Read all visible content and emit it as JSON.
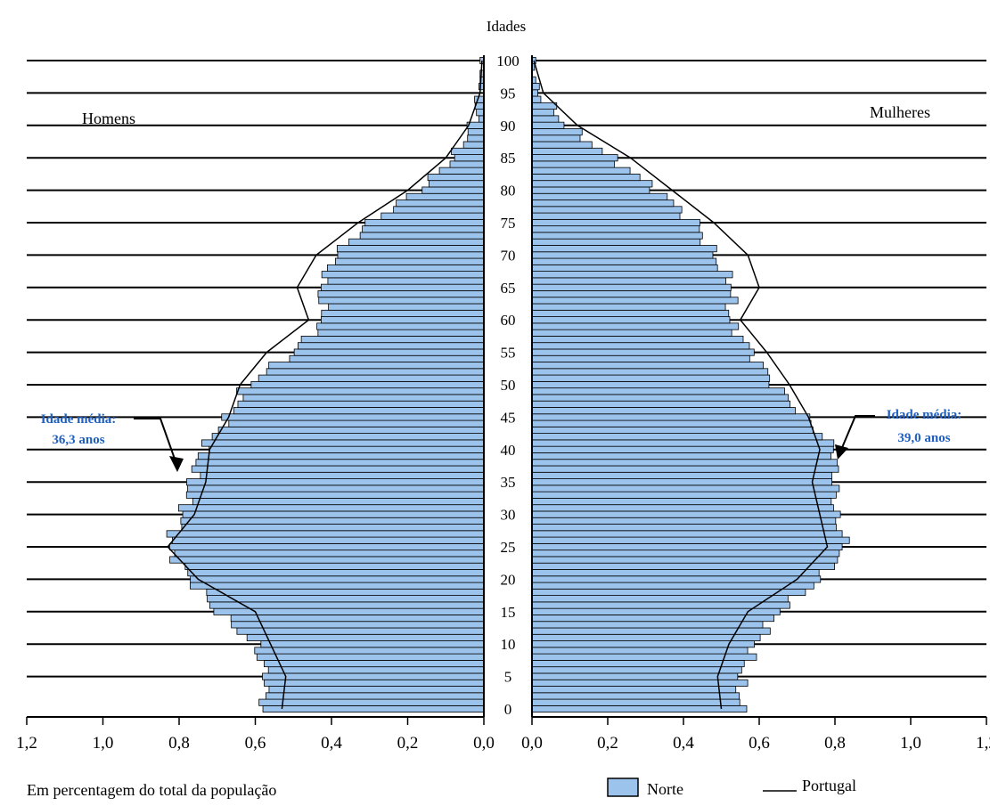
{
  "chart_data": {
    "type": "bar",
    "chart_kind": "population pyramid",
    "title": "",
    "axis_title_age": "Idades",
    "left_label": "Homens",
    "right_label": "Mulheres",
    "xlabel": "Em percentagem do total da população",
    "x_ticks_left": [
      "1,2",
      "1,0",
      "0,8",
      "0,6",
      "0,4",
      "0,2",
      "0,0"
    ],
    "x_ticks_right": [
      "0,0",
      "0,2",
      "0,4",
      "0,6",
      "0,8",
      "1,0",
      "1,2"
    ],
    "xlim": [
      0,
      1.2
    ],
    "age_ticks": [
      "0",
      "5",
      "10",
      "15",
      "20",
      "25",
      "30",
      "35",
      "40",
      "45",
      "50",
      "55",
      "60",
      "65",
      "70",
      "75",
      "80",
      "85",
      "90",
      "95",
      "100"
    ],
    "age_range": [
      0,
      100
    ],
    "legend": [
      {
        "name": "Norte",
        "kind": "bar",
        "color": "#9cc3ec"
      },
      {
        "name": "Portugal",
        "kind": "line",
        "color": "#000000"
      }
    ],
    "annotations": [
      {
        "side": "left",
        "line1": "Idade média:",
        "line2": "36,3 anos",
        "age": 36.3
      },
      {
        "side": "right",
        "line1": "Idade média:",
        "line2": "39,0 anos",
        "age": 39.0
      }
    ],
    "grid": "horizontal lines every 5 years",
    "colors": {
      "bar_fill": "#9cc3ec",
      "bar_stroke": "#000000",
      "portugal_line": "#000000",
      "annotation_text": "#1f5fbf"
    },
    "series": [
      {
        "name": "Norte",
        "side": "Homens",
        "ages": [
          0,
          5,
          10,
          15,
          20,
          25,
          30,
          35,
          40,
          45,
          50,
          55,
          60,
          65,
          70,
          75,
          80,
          85,
          90,
          95,
          100
        ],
        "values": [
          0.58,
          0.57,
          0.6,
          0.7,
          0.77,
          0.83,
          0.79,
          0.77,
          0.74,
          0.67,
          0.62,
          0.5,
          0.42,
          0.43,
          0.39,
          0.3,
          0.17,
          0.08,
          0.03,
          0.01,
          0.005
        ]
      },
      {
        "name": "Norte",
        "side": "Mulheres",
        "ages": [
          0,
          5,
          10,
          15,
          20,
          25,
          30,
          35,
          40,
          45,
          50,
          55,
          60,
          65,
          70,
          75,
          80,
          85,
          90,
          95,
          100
        ],
        "values": [
          0.55,
          0.55,
          0.59,
          0.65,
          0.76,
          0.83,
          0.8,
          0.8,
          0.8,
          0.72,
          0.64,
          0.58,
          0.52,
          0.53,
          0.48,
          0.43,
          0.33,
          0.21,
          0.09,
          0.02,
          0.005
        ]
      },
      {
        "name": "Portugal",
        "side": "Homens",
        "ages": [
          0,
          5,
          10,
          15,
          20,
          25,
          30,
          35,
          40,
          45,
          50,
          55,
          60,
          65,
          70,
          75,
          80,
          85,
          90,
          95,
          100
        ],
        "values": [
          0.53,
          0.52,
          0.56,
          0.6,
          0.75,
          0.83,
          0.76,
          0.73,
          0.72,
          0.67,
          0.64,
          0.57,
          0.46,
          0.49,
          0.44,
          0.33,
          0.2,
          0.1,
          0.04,
          0.01,
          0.005
        ]
      },
      {
        "name": "Portugal",
        "side": "Mulheres",
        "ages": [
          0,
          5,
          10,
          15,
          20,
          25,
          30,
          35,
          40,
          45,
          50,
          55,
          60,
          65,
          70,
          75,
          80,
          85,
          90,
          95,
          100
        ],
        "values": [
          0.5,
          0.49,
          0.52,
          0.57,
          0.7,
          0.78,
          0.76,
          0.74,
          0.76,
          0.73,
          0.68,
          0.62,
          0.55,
          0.6,
          0.57,
          0.48,
          0.37,
          0.26,
          0.12,
          0.03,
          0.005
        ]
      }
    ]
  }
}
